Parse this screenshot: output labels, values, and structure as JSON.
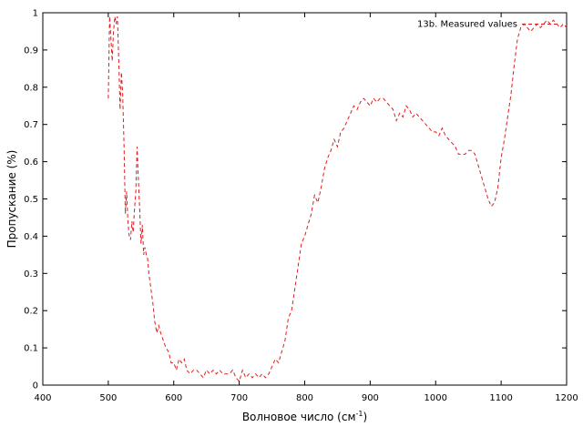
{
  "chart_data": {
    "type": "line",
    "title": "",
    "xlabel": "Волновое число (см",
    "xlabel_sup": "-1",
    "xlabel_end": ")",
    "ylabel": "Пропускание (%)",
    "xlim": [
      400,
      1200
    ],
    "ylim": [
      0,
      1
    ],
    "xticks": [
      "400",
      "500",
      "600",
      "700",
      "800",
      "900",
      "1000",
      "1100",
      "1200"
    ],
    "yticks": [
      "0",
      "0.1",
      "0.2",
      "0.3",
      "0.4",
      "0.5",
      "0.6",
      "0.7",
      "0.8",
      "0.9",
      "1"
    ],
    "legend_position": "top-right",
    "grid": false,
    "series": [
      {
        "name": "13b. Measured values",
        "color": "#e41a1c",
        "style": "dashed",
        "x": [
          500,
          502,
          504,
          506,
          508,
          510,
          512,
          514,
          516,
          518,
          520,
          522,
          524,
          526,
          528,
          530,
          532,
          534,
          536,
          538,
          540,
          542,
          544,
          546,
          548,
          550,
          552,
          554,
          556,
          558,
          560,
          562,
          565,
          568,
          571,
          574,
          577,
          580,
          584,
          588,
          592,
          596,
          600,
          604,
          608,
          612,
          616,
          620,
          625,
          630,
          635,
          640,
          645,
          650,
          655,
          660,
          665,
          670,
          675,
          680,
          685,
          690,
          695,
          700,
          705,
          710,
          715,
          720,
          725,
          730,
          735,
          740,
          745,
          750,
          755,
          760,
          765,
          770,
          775,
          780,
          785,
          790,
          795,
          800,
          805,
          810,
          815,
          820,
          825,
          830,
          835,
          840,
          845,
          850,
          855,
          860,
          865,
          870,
          875,
          880,
          885,
          890,
          895,
          900,
          905,
          910,
          915,
          920,
          925,
          930,
          935,
          940,
          945,
          950,
          955,
          960,
          965,
          970,
          975,
          980,
          985,
          990,
          995,
          1000,
          1005,
          1010,
          1015,
          1020,
          1025,
          1030,
          1035,
          1040,
          1045,
          1050,
          1055,
          1060,
          1065,
          1070,
          1075,
          1080,
          1085,
          1090,
          1095,
          1100,
          1105,
          1110,
          1115,
          1120,
          1125,
          1130,
          1135,
          1140,
          1145,
          1150,
          1155,
          1160,
          1165,
          1170,
          1175,
          1180,
          1185,
          1190,
          1195,
          1200
        ],
        "y": [
          0.77,
          0.99,
          0.93,
          0.87,
          0.95,
          0.99,
          0.97,
          0.99,
          0.87,
          0.74,
          0.84,
          0.78,
          0.65,
          0.46,
          0.52,
          0.44,
          0.4,
          0.39,
          0.44,
          0.41,
          0.47,
          0.52,
          0.64,
          0.55,
          0.47,
          0.38,
          0.43,
          0.35,
          0.37,
          0.35,
          0.34,
          0.3,
          0.26,
          0.22,
          0.17,
          0.14,
          0.16,
          0.14,
          0.12,
          0.1,
          0.09,
          0.06,
          0.06,
          0.04,
          0.07,
          0.06,
          0.07,
          0.04,
          0.03,
          0.04,
          0.04,
          0.03,
          0.02,
          0.04,
          0.03,
          0.04,
          0.03,
          0.04,
          0.03,
          0.03,
          0.03,
          0.04,
          0.02,
          0.01,
          0.04,
          0.02,
          0.03,
          0.02,
          0.03,
          0.02,
          0.03,
          0.02,
          0.03,
          0.05,
          0.07,
          0.06,
          0.09,
          0.12,
          0.18,
          0.2,
          0.26,
          0.32,
          0.38,
          0.4,
          0.43,
          0.46,
          0.51,
          0.49,
          0.53,
          0.58,
          0.61,
          0.63,
          0.66,
          0.64,
          0.68,
          0.69,
          0.71,
          0.73,
          0.75,
          0.74,
          0.76,
          0.77,
          0.76,
          0.75,
          0.77,
          0.76,
          0.77,
          0.77,
          0.76,
          0.75,
          0.74,
          0.71,
          0.73,
          0.72,
          0.75,
          0.74,
          0.72,
          0.73,
          0.72,
          0.71,
          0.7,
          0.69,
          0.68,
          0.68,
          0.67,
          0.69,
          0.67,
          0.66,
          0.65,
          0.64,
          0.62,
          0.62,
          0.62,
          0.63,
          0.63,
          0.62,
          0.59,
          0.56,
          0.53,
          0.5,
          0.48,
          0.49,
          0.53,
          0.61,
          0.66,
          0.72,
          0.78,
          0.86,
          0.93,
          0.96,
          0.97,
          0.96,
          0.95,
          0.96,
          0.97,
          0.96,
          0.97,
          0.98,
          0.97,
          0.98,
          0.97,
          0.96,
          0.97,
          0.96
        ]
      }
    ]
  }
}
